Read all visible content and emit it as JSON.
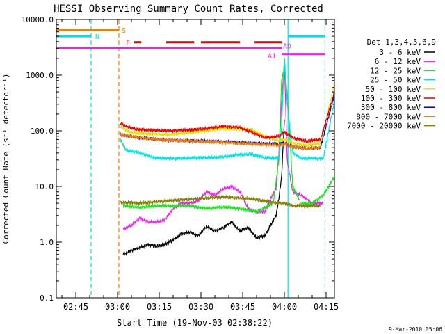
{
  "chart_data": {
    "type": "line",
    "title": "HESSI Observing Summary Count Rates, Corrected",
    "xlabel": "Start Time (19-Nov-03 02:38:22)",
    "ylabel": "Corrected Count Rate (s⁻¹ detector⁻¹)",
    "yscale": "log",
    "ylim": [
      0.1,
      10000
    ],
    "xlim_minutes_after_0238": [
      0,
      100
    ],
    "yticks": [
      {
        "value": 0.1,
        "label": "0.1"
      },
      {
        "value": 1,
        "label": "1.0"
      },
      {
        "value": 10,
        "label": "10.0"
      },
      {
        "value": 100,
        "label": "100.0"
      },
      {
        "value": 1000,
        "label": "1000.0"
      },
      {
        "value": 10000,
        "label": "10000.0"
      }
    ],
    "xticks": [
      {
        "t": 7,
        "label": "02:45"
      },
      {
        "t": 22,
        "label": "03:00"
      },
      {
        "t": 37,
        "label": "03:15"
      },
      {
        "t": 52,
        "label": "03:30"
      },
      {
        "t": 67,
        "label": "03:45"
      },
      {
        "t": 82,
        "label": "04:00"
      },
      {
        "t": 97,
        "label": "04:15"
      }
    ],
    "legend_title": "Det 1,3,4,5,6,9",
    "series": [
      {
        "name": "3 - 6 keV",
        "color": "#000000",
        "t": [
          24,
          27,
          30,
          33,
          36,
          39,
          42,
          45,
          48,
          51,
          54,
          57,
          60,
          63,
          66,
          69,
          72,
          75,
          77,
          79,
          80,
          81,
          82
        ],
        "values": [
          0.6,
          0.7,
          0.8,
          0.9,
          0.85,
          0.9,
          1.1,
          1.4,
          1.5,
          1.3,
          1.9,
          1.6,
          1.8,
          2.3,
          1.6,
          1.8,
          1.2,
          1.3,
          2,
          3,
          6,
          15,
          160
        ]
      },
      {
        "name": "6 - 12 keV",
        "color": "#e028e0",
        "t": [
          24,
          27,
          30,
          33,
          36,
          39,
          42,
          45,
          48,
          51,
          54,
          57,
          60,
          63,
          66,
          69,
          72,
          75,
          77,
          79,
          80,
          81,
          82,
          83,
          85,
          88,
          92,
          96
        ],
        "values": [
          1.7,
          2.0,
          2.7,
          2.3,
          2.3,
          2.5,
          4,
          5,
          5,
          5.5,
          8,
          7,
          9,
          10,
          8,
          4,
          3.5,
          3.5,
          6,
          9,
          40,
          300,
          1900,
          30,
          8,
          7,
          5,
          5
        ]
      },
      {
        "name": "12 - 25 keV",
        "color": "#20e020",
        "t": [
          24,
          30,
          36,
          42,
          48,
          54,
          60,
          66,
          72,
          78,
          80,
          81,
          82,
          83,
          85,
          88,
          92,
          96,
          100
        ],
        "values": [
          4.5,
          4.2,
          4.5,
          4.5,
          4.5,
          4.0,
          4.3,
          4.0,
          3.5,
          5,
          30,
          800,
          1400,
          500,
          10,
          5,
          5,
          7,
          15
        ]
      },
      {
        "name": "25 - 50 keV",
        "color": "#00e0e0",
        "t": [
          23,
          25,
          30,
          35,
          40,
          45,
          50,
          55,
          60,
          65,
          70,
          75,
          78,
          80,
          81,
          82,
          83,
          85,
          88,
          92,
          96,
          100
        ],
        "values": [
          70,
          45,
          40,
          33,
          32,
          32,
          33,
          33,
          34,
          37,
          38,
          33,
          32,
          33,
          120,
          2200,
          300,
          40,
          32,
          32,
          32,
          350
        ]
      },
      {
        "name": "50 - 100 keV",
        "color": "#e0e000",
        "t": [
          23,
          26,
          30,
          40,
          50,
          60,
          70,
          75,
          80,
          82,
          85,
          90,
          95,
          100
        ],
        "values": [
          120,
          95,
          90,
          85,
          95,
          110,
          105,
          80,
          65,
          70,
          60,
          55,
          60,
          700
        ]
      },
      {
        "name": "100 - 300 keV",
        "color": "#e00000",
        "t": [
          23,
          26,
          30,
          40,
          50,
          60,
          66,
          70,
          75,
          80,
          82,
          85,
          90,
          95,
          100
        ],
        "values": [
          135,
          115,
          105,
          100,
          105,
          120,
          115,
          95,
          75,
          80,
          95,
          75,
          65,
          70,
          500
        ]
      },
      {
        "name": "300 - 800 keV",
        "color": "#0000b0",
        "t": [
          23,
          30,
          40,
          50,
          60,
          70,
          80,
          82,
          85,
          90,
          95,
          100
        ],
        "values": [
          85,
          75,
          68,
          66,
          64,
          60,
          58,
          60,
          52,
          48,
          50,
          450
        ]
      },
      {
        "name": "800 - 7000 keV",
        "color": "#f08000",
        "t": [
          23,
          30,
          40,
          50,
          60,
          70,
          80,
          82,
          85,
          90,
          95
        ],
        "values": [
          85,
          75,
          68,
          65,
          62,
          58,
          55,
          58,
          52,
          48,
          50
        ]
      },
      {
        "name": "7000 - 20000 keV",
        "color": "#808000",
        "t": [
          23,
          30,
          40,
          50,
          60,
          70,
          80,
          82,
          85,
          90,
          95
        ],
        "values": [
          5.2,
          5.0,
          5.5,
          6.0,
          6.5,
          6.0,
          5.0,
          5.0,
          4.5,
          4.5,
          4.5
        ]
      }
    ],
    "vertical_markers": [
      {
        "t": 12.5,
        "color": "#00e0e0",
        "style": "dashed"
      },
      {
        "t": 22.5,
        "color": "#f08000",
        "style": "dashed"
      },
      {
        "t": 83.3,
        "color": "#00e0e0",
        "style": "solid"
      },
      {
        "t": 96.6,
        "color": "#00e0e0",
        "style": "dashed"
      }
    ],
    "flag_bars": [
      {
        "label": "S",
        "color": "#f08000",
        "y": 6500,
        "segments": [
          [
            0,
            22.5
          ]
        ]
      },
      {
        "label": "N",
        "color": "#00e0e0",
        "y": 5000,
        "segments": [
          [
            0,
            12.5
          ],
          [
            83.3,
            96.6
          ]
        ]
      },
      {
        "label": "F",
        "color": "#e00000",
        "y": 3900,
        "segments": [
          [
            28,
            30.5
          ],
          [
            39.5,
            49.5
          ],
          [
            52,
            66
          ],
          [
            71,
            81
          ]
        ]
      },
      {
        "label": "AD",
        "color": "#e028e0",
        "y": 3100,
        "segments": [
          [
            0,
            81
          ]
        ]
      },
      {
        "label": "A1",
        "color": "#e028e0",
        "y": 2400,
        "segments": [
          [
            81,
            96.6
          ]
        ]
      }
    ],
    "grid": false,
    "legend_position": "right"
  },
  "footer": {
    "date_stamp": "9-Mar-2010 05:06"
  }
}
